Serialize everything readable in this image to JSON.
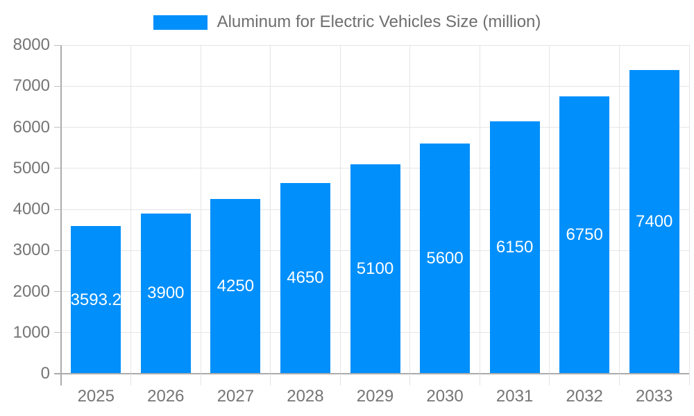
{
  "chart_data": {
    "type": "bar",
    "legend": {
      "label": "Aluminum for Electric Vehicles Size (million)",
      "position": "top"
    },
    "categories": [
      "2025",
      "2026",
      "2027",
      "2028",
      "2029",
      "2030",
      "2031",
      "2032",
      "2033"
    ],
    "values": [
      3593.2,
      3900,
      4250,
      4650,
      5100,
      5600,
      6150,
      6750,
      7400
    ],
    "bar_labels": [
      "3593.2",
      "3900",
      "4250",
      "4650",
      "5100",
      "5600",
      "6150",
      "6750",
      "7400"
    ],
    "xlabel": "",
    "ylabel": "",
    "ylim": [
      0,
      8000
    ],
    "yticks": [
      0,
      1000,
      2000,
      3000,
      4000,
      5000,
      6000,
      7000,
      8000
    ],
    "grid": true,
    "value_labels_position": "inside-center",
    "colors": {
      "bar": "#008FFB",
      "gridline": "#E5E5E5",
      "axis_line": "#ABABAB",
      "tick": "#C0C0C0",
      "axis_label_text": "#757575",
      "legend_text": "#6E6E6E",
      "value_label_text": "#FFFFFF",
      "background": "#FFFFFF"
    }
  }
}
